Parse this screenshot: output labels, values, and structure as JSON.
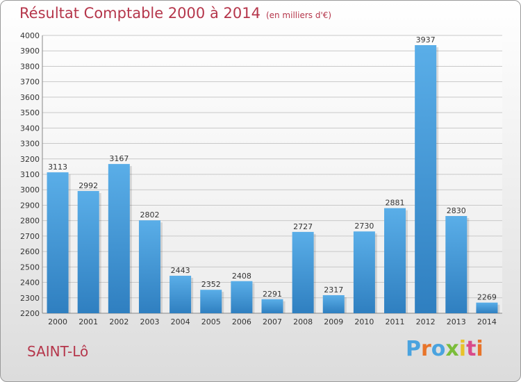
{
  "title": "Résultat Comptable 2000 à 2014",
  "subtitle": "(en milliers d'€)",
  "city": "SAINT-Lô",
  "logo": {
    "letters": [
      "P",
      "r",
      "o",
      "x",
      "i",
      "t",
      "i"
    ],
    "colors": [
      "#4aa3df",
      "#e8742a",
      "#4aa3df",
      "#7bbd3a",
      "#e8c22a",
      "#d94b8a",
      "#e8742a"
    ]
  },
  "chart_data": {
    "type": "bar",
    "categories": [
      "2000",
      "2001",
      "2002",
      "2003",
      "2004",
      "2005",
      "2006",
      "2007",
      "2008",
      "2009",
      "2010",
      "2011",
      "2012",
      "2013",
      "2014"
    ],
    "values": [
      3113,
      2992,
      3167,
      2802,
      2443,
      2352,
      2408,
      2291,
      2727,
      2317,
      2730,
      2881,
      3937,
      2830,
      2269
    ],
    "ylim": [
      2200,
      4000
    ],
    "yticks": [
      2200,
      2300,
      2400,
      2500,
      2600,
      2700,
      2800,
      2900,
      3000,
      3100,
      3200,
      3300,
      3400,
      3500,
      3600,
      3700,
      3800,
      3900,
      4000
    ],
    "grid": true,
    "bar_color": "#4f9ad8",
    "title": "Résultat Comptable 2000 à 2014",
    "xlabel": "",
    "ylabel": ""
  }
}
